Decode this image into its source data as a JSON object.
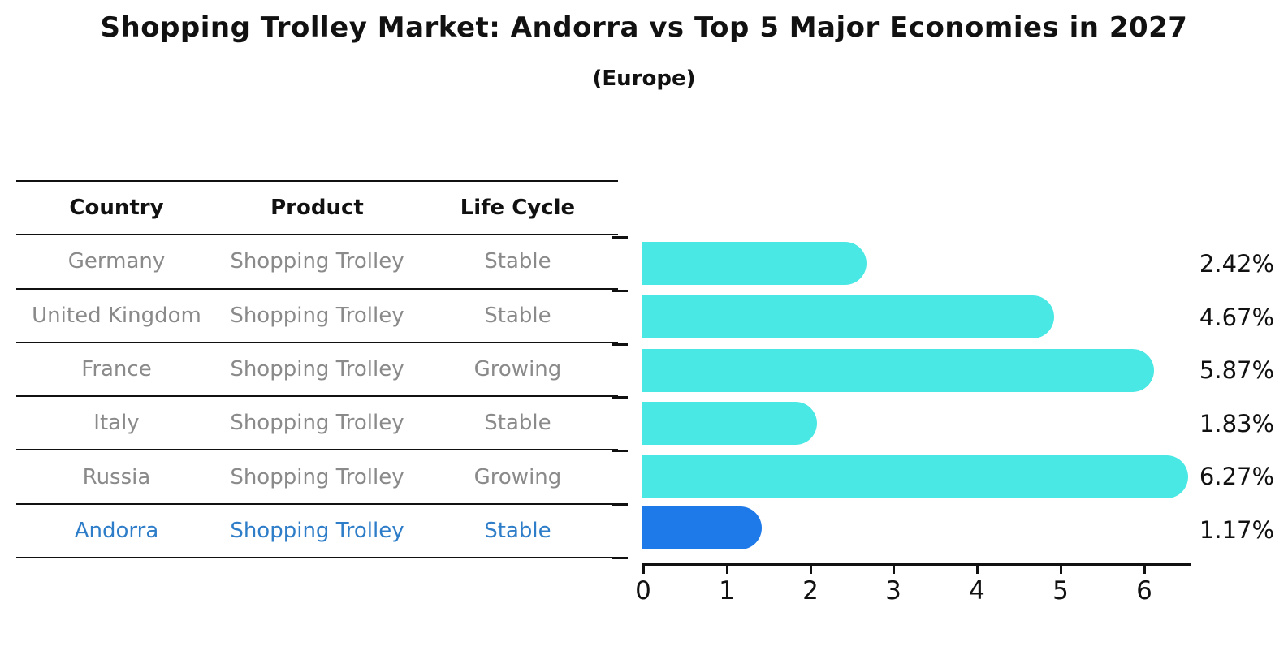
{
  "header": {
    "title": "Shopping Trolley Market: Andorra vs Top 5 Major Economies in 2027",
    "subtitle": "(Europe)"
  },
  "colors": {
    "bar_cyan": "#4AE8E4",
    "bar_blue": "#1E7AE8",
    "highlight_text": "#2E7DC8",
    "text_gray": "#8A8A8A",
    "axis_black": "#111111"
  },
  "table": {
    "headers": {
      "country": "Country",
      "product": "Product",
      "life_cycle": "Life Cycle"
    },
    "rows": [
      {
        "country": "Germany",
        "product": "Shopping Trolley",
        "life_cycle": "Stable"
      },
      {
        "country": "United Kingdom",
        "product": "Shopping Trolley",
        "life_cycle": "Stable"
      },
      {
        "country": "France",
        "product": "Shopping Trolley",
        "life_cycle": "Growing"
      },
      {
        "country": "Italy",
        "product": "Shopping Trolley",
        "life_cycle": "Stable"
      },
      {
        "country": "Russia",
        "product": "Shopping Trolley",
        "life_cycle": "Growing"
      },
      {
        "country": "Andorra",
        "product": "Shopping Trolley",
        "life_cycle": "Stable"
      }
    ]
  },
  "chart_data": {
    "type": "bar",
    "orientation": "horizontal",
    "title": "Shopping Trolley Market: Andorra vs Top 5 Major Economies in 2027",
    "subtitle": "(Europe)",
    "categories": [
      "Germany",
      "United Kingdom",
      "France",
      "Italy",
      "Russia",
      "Andorra"
    ],
    "values": [
      2.42,
      4.67,
      5.87,
      1.83,
      6.27,
      1.17
    ],
    "value_labels": [
      "2.42%",
      "4.67%",
      "5.87%",
      "1.83%",
      "6.27%",
      "1.17%"
    ],
    "unit": "percent",
    "xlim": [
      0,
      6.56
    ],
    "x_ticks": [
      "0",
      "1",
      "2",
      "3",
      "4",
      "5",
      "6"
    ],
    "grid": "off",
    "legend": "none",
    "highlight_index": 5,
    "highlight_category": "Andorra"
  }
}
